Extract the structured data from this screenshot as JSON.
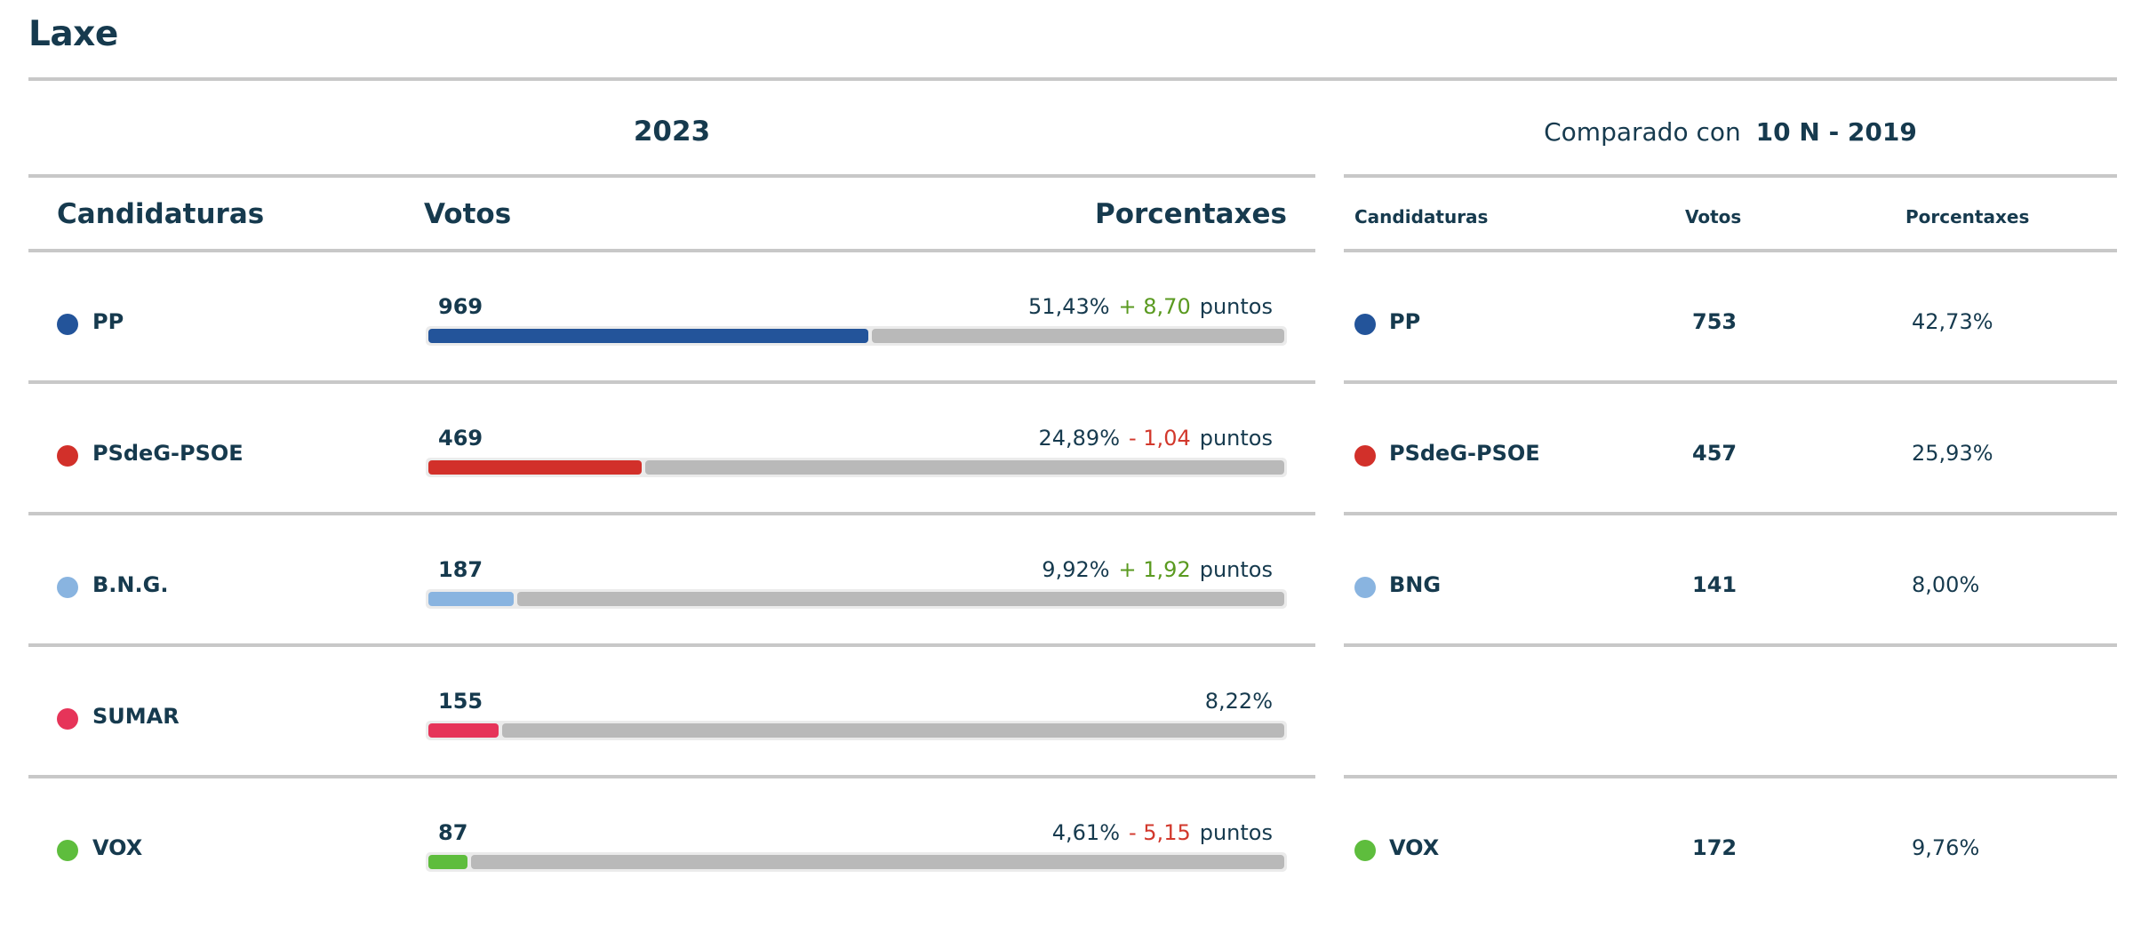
{
  "municipality": "Laxe",
  "year_label": "2023",
  "comparison": {
    "prefix": "Comparado con",
    "election": "10 N - 2019"
  },
  "headers": {
    "main": {
      "candidates": "Candidaturas",
      "votes": "Votos",
      "percent": "Porcentaxes"
    },
    "compare": {
      "candidates": "Candidaturas",
      "votes": "Votos",
      "percent": "Porcentaxes"
    }
  },
  "rows": [
    {
      "party": "PP",
      "color": "#23549a",
      "votes": "969",
      "percent": "51,43%",
      "share": 0.5143,
      "diff": "+ 8,70",
      "diff_sign": "pos",
      "unit": "puntos",
      "compare": {
        "party": "PP",
        "color": "#23549a",
        "votes": "753",
        "percent": "42,73%"
      }
    },
    {
      "party": "PSdeG-PSOE",
      "color": "#d2302a",
      "votes": "469",
      "percent": "24,89%",
      "share": 0.2489,
      "diff": "- 1,04",
      "diff_sign": "neg",
      "unit": "puntos",
      "compare": {
        "party": "PSdeG-PSOE",
        "color": "#d2302a",
        "votes": "457",
        "percent": "25,93%"
      }
    },
    {
      "party": "B.N.G.",
      "color": "#89b4e0",
      "votes": "187",
      "percent": "9,92%",
      "share": 0.0992,
      "diff": "+ 1,92",
      "diff_sign": "pos",
      "unit": "puntos",
      "compare": {
        "party": "BNG",
        "color": "#89b4e0",
        "votes": "141",
        "percent": "8,00%"
      }
    },
    {
      "party": "SUMAR",
      "color": "#e63459",
      "votes": "155",
      "percent": "8,22%",
      "share": 0.0822,
      "diff": "",
      "diff_sign": "",
      "unit": "",
      "compare": null
    },
    {
      "party": "VOX",
      "color": "#5ebd3d",
      "votes": "87",
      "percent": "4,61%",
      "share": 0.0461,
      "diff": "- 5,15",
      "diff_sign": "neg",
      "unit": "puntos",
      "compare": {
        "party": "VOX",
        "color": "#5ebd3d",
        "votes": "172",
        "percent": "9,76%"
      }
    }
  ]
}
